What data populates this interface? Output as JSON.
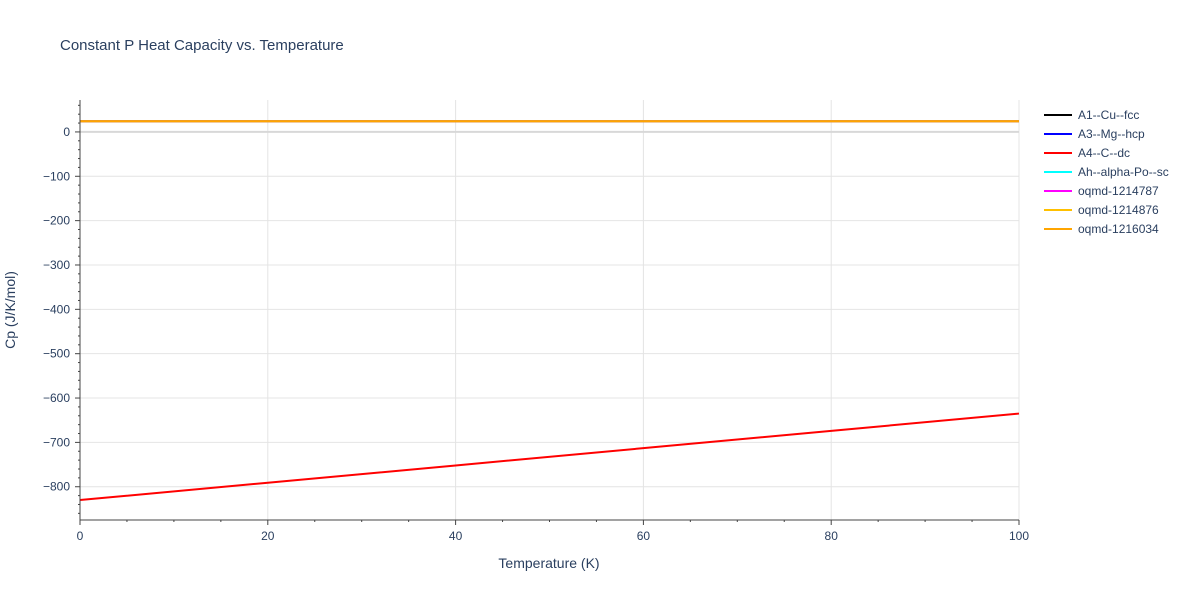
{
  "chart_data": {
    "type": "line",
    "title": "Constant P Heat Capacity vs. Temperature",
    "xlabel": "Temperature (K)",
    "ylabel": "Cp (J/K/mol)",
    "xlim": [
      0,
      100
    ],
    "ylim": [
      -875,
      72
    ],
    "xticks": [
      0,
      20,
      40,
      60,
      80,
      100
    ],
    "yticks": [
      0,
      -100,
      -200,
      -300,
      -400,
      -500,
      -600,
      -700,
      -800
    ],
    "ytick_labels": [
      "0",
      "−100",
      "−200",
      "−300",
      "−400",
      "−500",
      "−600",
      "−700",
      "−800"
    ],
    "grid": true,
    "legend_position": "right",
    "series": [
      {
        "name": "A1--Cu--fcc",
        "color": "#000000",
        "x": [
          0,
          100
        ],
        "y": [
          24,
          24
        ]
      },
      {
        "name": "A3--Mg--hcp",
        "color": "#0000ff",
        "x": [
          0,
          100
        ],
        "y": [
          24,
          24
        ]
      },
      {
        "name": "A4--C--dc",
        "color": "#ff0000",
        "x": [
          0,
          20,
          40,
          60,
          80,
          100
        ],
        "y": [
          -830,
          -791,
          -752,
          -713,
          -674,
          -635
        ]
      },
      {
        "name": "Ah--alpha-Po--sc",
        "color": "#00ffff",
        "x": [
          0,
          100
        ],
        "y": [
          24,
          24
        ]
      },
      {
        "name": "oqmd-1214787",
        "color": "#ff00ff",
        "x": [
          0,
          100
        ],
        "y": [
          24,
          24
        ]
      },
      {
        "name": "oqmd-1214876",
        "color": "#ffc000",
        "x": [
          0,
          100
        ],
        "y": [
          24,
          24
        ]
      },
      {
        "name": "oqmd-1216034",
        "color": "#ffa500",
        "x": [
          0,
          100
        ],
        "y": [
          24,
          24
        ]
      }
    ]
  }
}
